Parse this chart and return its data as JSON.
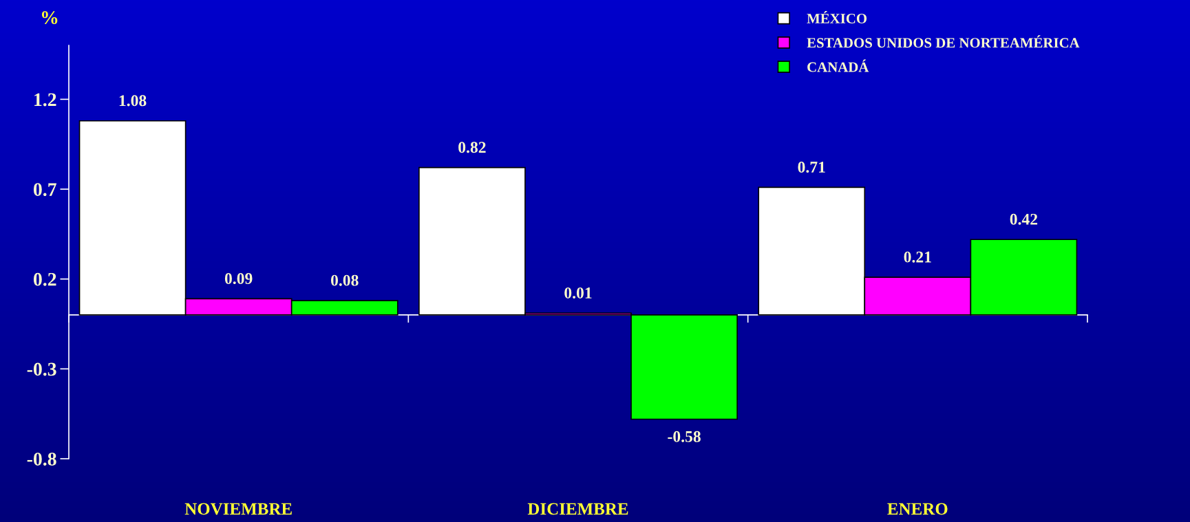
{
  "chart_data": {
    "type": "bar",
    "ylabel": "%",
    "categories": [
      "NOVIEMBRE",
      "DICIEMBRE",
      "ENERO"
    ],
    "series": [
      {
        "name": "MÉXICO",
        "color": "#ffffff",
        "values": [
          1.08,
          0.82,
          0.71
        ]
      },
      {
        "name": "ESTADOS UNIDOS DE NORTEAMÉRICA",
        "color": "#ff00ff",
        "values": [
          0.09,
          0.01,
          0.21
        ]
      },
      {
        "name": "CANADÁ",
        "color": "#00ff00",
        "values": [
          0.08,
          -0.58,
          0.42
        ]
      }
    ],
    "ylim": [
      -0.8,
      1.5
    ],
    "yticks": [
      -0.8,
      -0.3,
      0.2,
      0.7,
      1.2
    ],
    "data_labels": true,
    "legend": "top right",
    "grid": false
  }
}
